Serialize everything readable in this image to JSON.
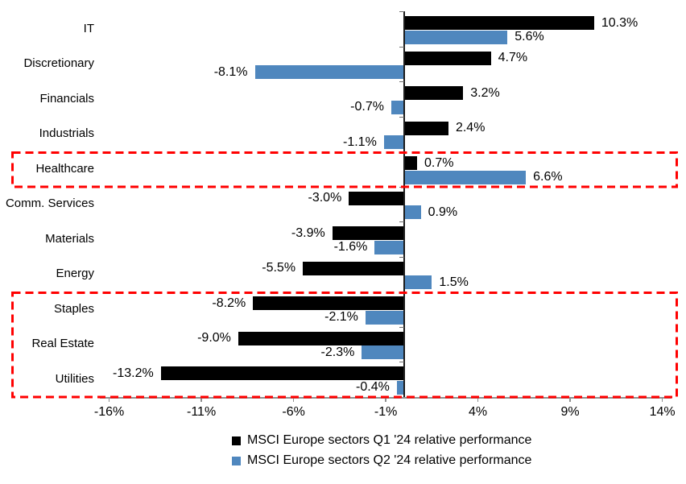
{
  "chart_data": {
    "type": "bar",
    "orientation": "horizontal",
    "title": "",
    "categories": [
      "IT",
      "Discretionary",
      "Financials",
      "Industrials",
      "Healthcare",
      "Comm. Services",
      "Materials",
      "Energy",
      "Staples",
      "Real Estate",
      "Utilities"
    ],
    "series": [
      {
        "name": "MSCI Europe sectors Q1 '24 relative performance",
        "color": "#000000",
        "values": [
          10.3,
          4.7,
          3.2,
          2.4,
          0.7,
          -3.0,
          -3.9,
          -5.5,
          -8.2,
          -9.0,
          -13.2
        ],
        "labels": [
          "10.3%",
          "4.7%",
          "3.2%",
          "2.4%",
          "0.7%",
          "-3.0%",
          "-3.9%",
          "-5.5%",
          "-8.2%",
          "-9.0%",
          "-13.2%"
        ]
      },
      {
        "name": "MSCI Europe sectors Q2 '24 relative performance",
        "color": "#4F87BE",
        "values": [
          5.6,
          -8.1,
          -0.7,
          -1.1,
          6.6,
          0.9,
          -1.6,
          1.5,
          -2.1,
          -2.3,
          -0.4
        ],
        "labels": [
          "5.6%",
          "-8.1%",
          "-0.7%",
          "-1.1%",
          "6.6%",
          "0.9%",
          "-1.6%",
          "1.5%",
          "-2.1%",
          "-2.3%",
          "-0.4%"
        ]
      }
    ],
    "x_axis": {
      "tick_values": [
        -16,
        -11,
        -6,
        -1,
        4,
        9,
        14
      ],
      "tick_labels": [
        "-16%",
        "-11%",
        "-6%",
        "-1%",
        "4%",
        "9%",
        "14%"
      ],
      "min": -16.5,
      "max": 14.5
    },
    "grid": false,
    "legend_position": "bottom",
    "highlights": [
      {
        "categories": [
          "Healthcare"
        ],
        "style": "red-dashed-box",
        "color": "#FF0000"
      },
      {
        "categories": [
          "Staples",
          "Real Estate",
          "Utilities"
        ],
        "style": "red-dashed-box",
        "color": "#FF0000"
      }
    ]
  }
}
